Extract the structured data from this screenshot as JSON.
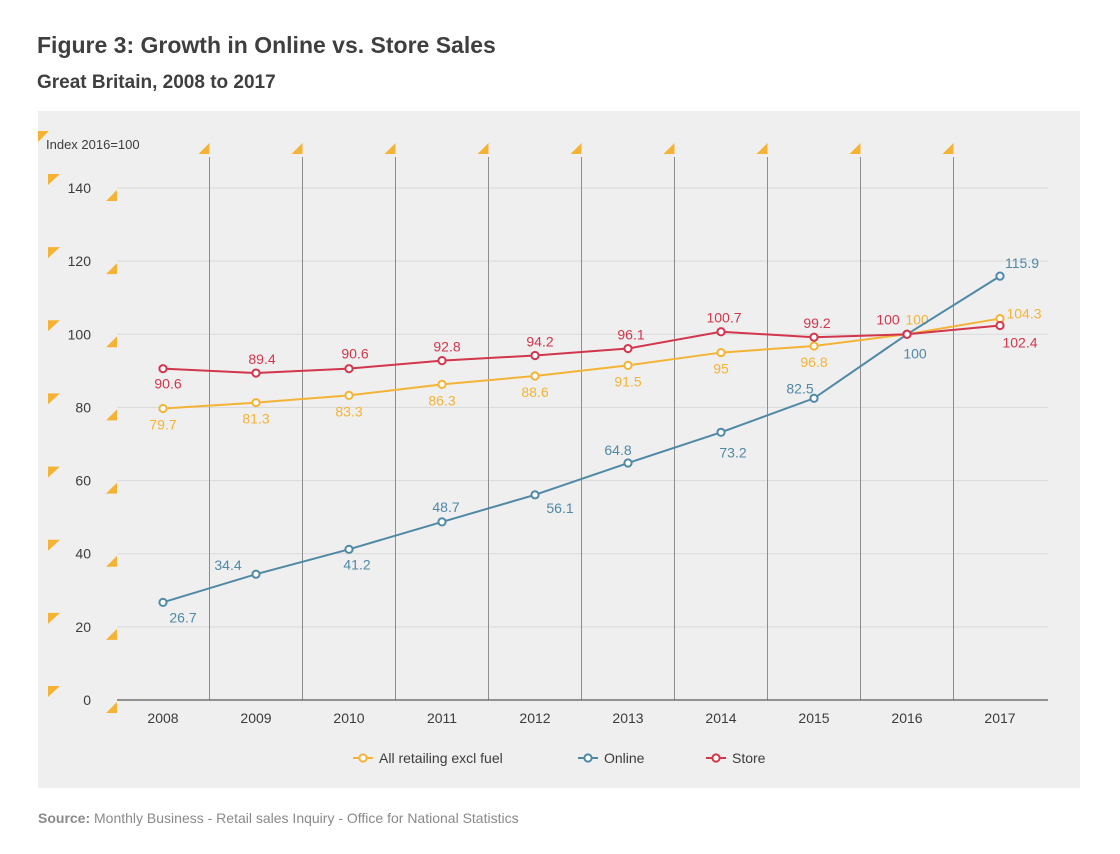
{
  "header": {
    "title": "Figure 3: Growth in Online vs. Store Sales",
    "subtitle": "Great Britain, 2008 to 2017"
  },
  "source": {
    "label": "Source:",
    "text": "Monthly Business - Retail sales Inquiry - Office for National Statistics"
  },
  "chart_data": {
    "type": "line",
    "ylabel": "Index 2016=100",
    "xlabel": "",
    "ylim": [
      0,
      140
    ],
    "yticks": [
      0,
      20,
      40,
      60,
      80,
      100,
      120,
      140
    ],
    "categories": [
      "2008",
      "2009",
      "2010",
      "2011",
      "2012",
      "2013",
      "2014",
      "2015",
      "2016",
      "2017"
    ],
    "grid": "horizontal and vertical",
    "legend_position": "bottom",
    "series": [
      {
        "name": "All retailing excl fuel",
        "color": "#f5b335",
        "values": [
          79.7,
          81.3,
          83.3,
          86.3,
          88.6,
          91.5,
          95,
          96.8,
          100,
          104.3
        ],
        "labels": [
          "79.7",
          "81.3",
          "83.3",
          "86.3",
          "88.6",
          "91.5",
          "95",
          "96.8",
          "100",
          "104.3"
        ]
      },
      {
        "name": "Online",
        "color": "#4f89a6",
        "values": [
          26.7,
          34.4,
          41.2,
          48.7,
          56.1,
          64.8,
          73.2,
          82.5,
          100,
          115.9
        ],
        "labels": [
          "26.7",
          "34.4",
          "41.2",
          "48.7",
          "56.1",
          "64.8",
          "73.2",
          "82.5",
          "100",
          "115.9"
        ]
      },
      {
        "name": "Store",
        "color": "#d2364c",
        "values": [
          90.6,
          89.4,
          90.6,
          92.8,
          94.2,
          96.1,
          100.7,
          99.2,
          100,
          102.4
        ],
        "labels": [
          "90.6",
          "89.4",
          "90.6",
          "92.8",
          "94.2",
          "96.1",
          "100.7",
          "99.2",
          "100",
          "102.4"
        ]
      }
    ]
  }
}
